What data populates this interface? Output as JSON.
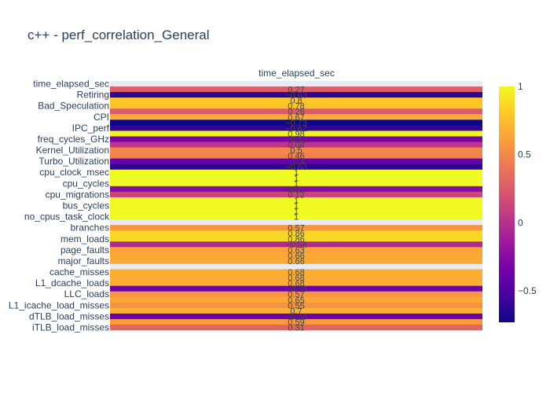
{
  "chart_data": {
    "type": "heatmap",
    "title": "c++ - perf_correlation_General",
    "column_label": "time_elapsed_sec",
    "rows": [
      "time_elapsed_sec",
      "",
      "Retiring",
      "",
      "Bad_Speculation",
      "",
      "CPI",
      "",
      "IPC_perf",
      "",
      "freq_cycles_GHz",
      "",
      "Kernel_Utilization",
      "",
      "Turbo_Utilization",
      "",
      "cpu_clock_msec",
      "",
      "cpu_cycles",
      "",
      "cpu_migrations",
      "",
      "bus_cycles",
      "",
      "no_cpus_task_clock",
      "",
      "branches",
      "",
      "mem_loads",
      "",
      "page_faults",
      "",
      "major_faults",
      "",
      "cache_misses",
      "",
      "L1_dcache_loads",
      "",
      "LLC_loads",
      "",
      "L1_icache_load_misses",
      "",
      "dTLB_load_misses",
      "",
      "iTLB_load_misses"
    ],
    "values": [
      null,
      0.27,
      -0.63,
      0.8,
      0.78,
      0.26,
      0.67,
      -0.73,
      -0.62,
      0.98,
      -0.32,
      0.04,
      0.5,
      0.46,
      -0.4,
      -0.63,
      1,
      1,
      1,
      -0.27,
      0.12,
      1,
      1,
      1,
      1,
      null,
      0.57,
      0.86,
      0.86,
      -0.04,
      0.63,
      0.66,
      0.66,
      null,
      0.68,
      0.68,
      0.68,
      -0.38,
      0.57,
      0.65,
      0.55,
      0.7,
      -0.38,
      0.59,
      0.31,
      0.21
    ],
    "colorbar": {
      "ticks": [
        "1",
        "0.5",
        "0",
        "−0.5"
      ],
      "min": -0.73,
      "max": 1
    },
    "colorscale": [
      "#0d0887",
      "#46039f",
      "#7201a8",
      "#9c179e",
      "#bd3786",
      "#d8576b",
      "#ed7953",
      "#fb9f3a",
      "#fdca26",
      "#f0f921"
    ]
  }
}
